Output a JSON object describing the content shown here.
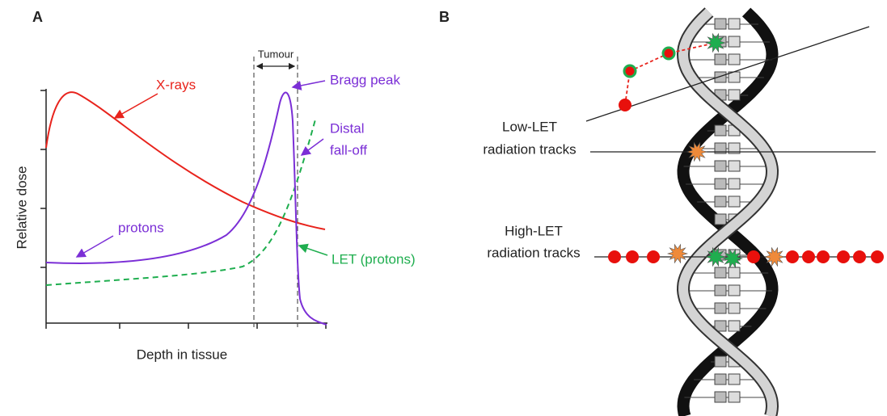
{
  "panel_a": {
    "label": "A",
    "tumour": "Tumour",
    "x_rays": "X-rays",
    "bragg_peak": "Bragg peak",
    "distal_fall_off": [
      "Distal",
      "fall-off"
    ],
    "protons": "protons",
    "let_protons": "LET (protons)",
    "y_axis_label": "Relative dose",
    "x_axis_label": "Depth in tissue"
  },
  "panel_b": {
    "label": "B",
    "low_let": [
      "Low-LET",
      "radiation tracks"
    ],
    "high_let": [
      "High-LET",
      "radiation tracks"
    ]
  }
}
